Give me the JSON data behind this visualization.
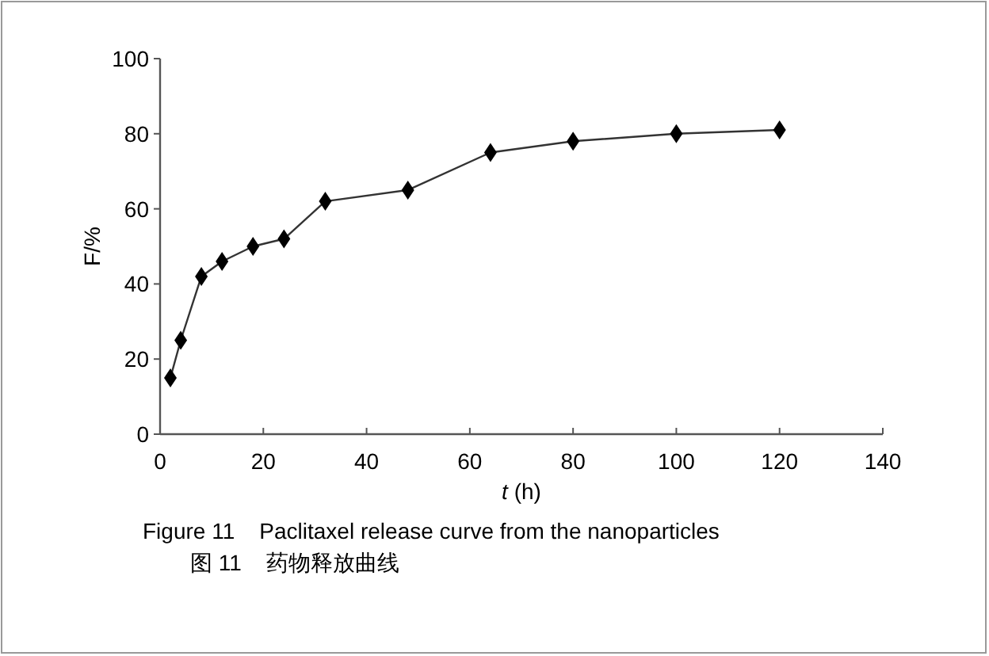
{
  "chart_data": {
    "type": "line",
    "xlabel": "*t* (h)",
    "ylabel": "F/%",
    "x": [
      2,
      4,
      8,
      12,
      18,
      24,
      32,
      48,
      64,
      80,
      100,
      120
    ],
    "values": [
      15,
      25,
      42,
      46,
      50,
      52,
      62,
      65,
      75,
      78,
      80,
      81
    ],
    "color": "#000000",
    "marker": "diamond",
    "line_style": "solid",
    "grid": false,
    "xlim": [
      0,
      140
    ],
    "xticks": [
      0,
      20,
      40,
      60,
      80,
      100,
      120,
      140
    ],
    "ylim": [
      0,
      100
    ],
    "yticks": [
      0,
      20,
      40,
      60,
      80,
      100
    ],
    "annotations": [
      "Figure 11    Paclitaxel release curve from the nanoparticles",
      "图 11    药物释放曲线"
    ]
  }
}
